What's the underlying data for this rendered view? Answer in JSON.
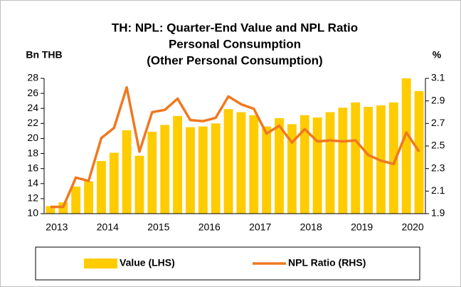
{
  "chart_data": {
    "type": "bar-line",
    "title": [
      "TH: NPL: Quarter-End Value and NPL Ratio",
      "Personal Consumption",
      "(Other Personal Consumption)"
    ],
    "ylabel": "Bn THB",
    "y2label": "%",
    "categories": [
      "2013",
      null,
      null,
      null,
      "2014",
      null,
      null,
      null,
      "2015",
      null,
      null,
      null,
      "2016",
      null,
      null,
      null,
      "2017",
      null,
      null,
      null,
      "2018",
      null,
      null,
      null,
      "2019",
      null,
      null,
      null,
      "2020",
      null
    ],
    "series": [
      {
        "name": "Value (LHS)",
        "type": "bar",
        "color": "#ffcc00",
        "values": [
          11.0,
          11.5,
          13.6,
          14.3,
          17.0,
          18.1,
          21.1,
          17.7,
          20.9,
          21.8,
          23.0,
          21.5,
          21.6,
          22.0,
          23.9,
          23.5,
          23.1,
          21.6,
          22.7,
          21.9,
          23.1,
          22.8,
          23.5,
          24.1,
          24.8,
          24.2,
          24.4,
          24.8,
          28.0,
          26.3
        ]
      },
      {
        "name": "NPL Ratio (RHS)",
        "type": "line",
        "axis": "y2",
        "color": "#f07820",
        "values": [
          1.96,
          1.96,
          2.22,
          2.19,
          2.57,
          2.66,
          3.02,
          2.45,
          2.8,
          2.82,
          2.92,
          2.73,
          2.72,
          2.75,
          2.94,
          2.87,
          2.83,
          2.61,
          2.68,
          2.53,
          2.65,
          2.54,
          2.55,
          2.54,
          2.55,
          2.42,
          2.37,
          2.34,
          2.62,
          2.45
        ]
      }
    ],
    "ylim": [
      10,
      28
    ],
    "yticks": [
      10,
      12,
      14,
      16,
      18,
      20,
      22,
      24,
      26,
      28
    ],
    "y2lim": [
      1.9,
      3.1
    ],
    "y2ticks": [
      1.9,
      2.1,
      2.3,
      2.5,
      2.7,
      2.9,
      3.1
    ],
    "grid": false,
    "legend": "bottom"
  }
}
